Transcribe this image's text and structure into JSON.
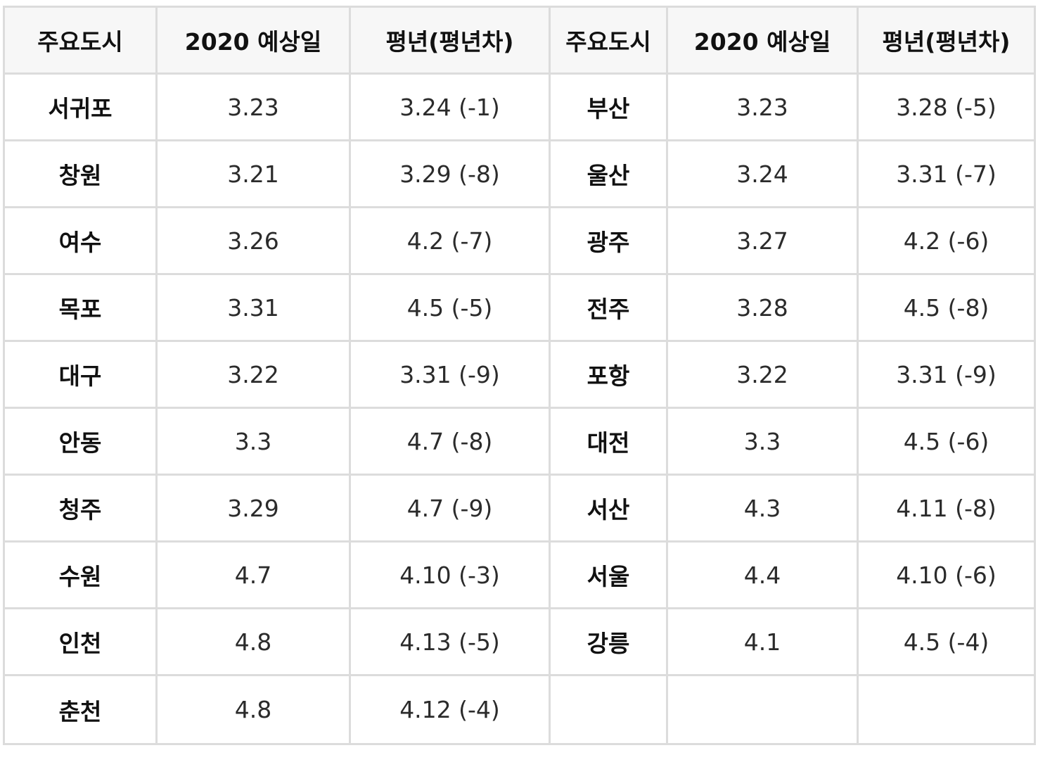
{
  "headers": [
    "주요도시",
    "2020 예상일",
    "평년(평년차)",
    "주요도시",
    "2020 예상일",
    "평년(평년차)"
  ],
  "rows": [
    {
      "left": {
        "city": "서귀포",
        "date": "3.23",
        "avg": "3.24 (-1)"
      },
      "right": {
        "city": "부산",
        "date": "3.23",
        "avg": "3.28 (-5)"
      }
    },
    {
      "left": {
        "city": "창원",
        "date": "3.21",
        "avg": "3.29 (-8)"
      },
      "right": {
        "city": "울산",
        "date": "3.24",
        "avg": "3.31 (-7)"
      }
    },
    {
      "left": {
        "city": "여수",
        "date": "3.26",
        "avg": "4.2 (-7)"
      },
      "right": {
        "city": "광주",
        "date": "3.27",
        "avg": "4.2 (-6)"
      }
    },
    {
      "left": {
        "city": "목포",
        "date": "3.31",
        "avg": "4.5 (-5)"
      },
      "right": {
        "city": "전주",
        "date": "3.28",
        "avg": "4.5 (-8)"
      }
    },
    {
      "left": {
        "city": "대구",
        "date": "3.22",
        "avg": "3.31 (-9)"
      },
      "right": {
        "city": "포항",
        "date": "3.22",
        "avg": "3.31 (-9)"
      }
    },
    {
      "left": {
        "city": "안동",
        "date": "3.3",
        "avg": "4.7 (-8)"
      },
      "right": {
        "city": "대전",
        "date": "3.3",
        "avg": "4.5 (-6)"
      }
    },
    {
      "left": {
        "city": "청주",
        "date": "3.29",
        "avg": "4.7 (-9)"
      },
      "right": {
        "city": "서산",
        "date": "4.3",
        "avg": "4.11 (-8)"
      }
    },
    {
      "left": {
        "city": "수원",
        "date": "4.7",
        "avg": "4.10 (-3)"
      },
      "right": {
        "city": "서울",
        "date": "4.4",
        "avg": "4.10 (-6)"
      }
    },
    {
      "left": {
        "city": "인천",
        "date": "4.8",
        "avg": "4.13 (-5)"
      },
      "right": {
        "city": "강릉",
        "date": "4.1",
        "avg": "4.5 (-4)"
      }
    },
    {
      "left": {
        "city": "춘천",
        "date": "4.8",
        "avg": "4.12 (-4)"
      },
      "right": {
        "city": "",
        "date": "",
        "avg": ""
      }
    }
  ]
}
